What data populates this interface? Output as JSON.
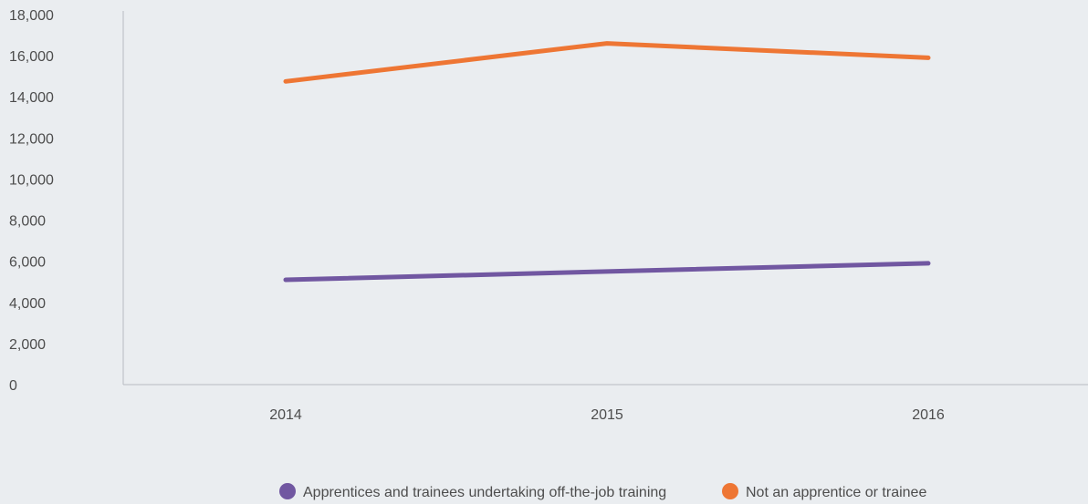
{
  "chart_data": {
    "type": "line",
    "title": "",
    "xlabel": "",
    "ylabel": "",
    "categories": [
      "2014",
      "2015",
      "2016"
    ],
    "ylim": [
      0,
      18000
    ],
    "yticks": [
      0,
      2000,
      4000,
      6000,
      8000,
      10000,
      12000,
      14000,
      16000,
      18000
    ],
    "ytick_labels": [
      "0",
      "2,000",
      "4,000",
      "6,000",
      "8,000",
      "10,000",
      "12,000",
      "14,000",
      "16,000",
      "18,000"
    ],
    "grid": false,
    "legend_position": "bottom-center",
    "series": [
      {
        "name": "Apprentices and trainees undertaking off-the-job training",
        "values": [
          5100,
          5500,
          5900
        ],
        "color": "#7157a1"
      },
      {
        "name": "Not an apprentice or trainee",
        "values": [
          14750,
          16600,
          15900
        ],
        "color": "#ee7634"
      }
    ],
    "axis_color": "#b8bcc2"
  }
}
